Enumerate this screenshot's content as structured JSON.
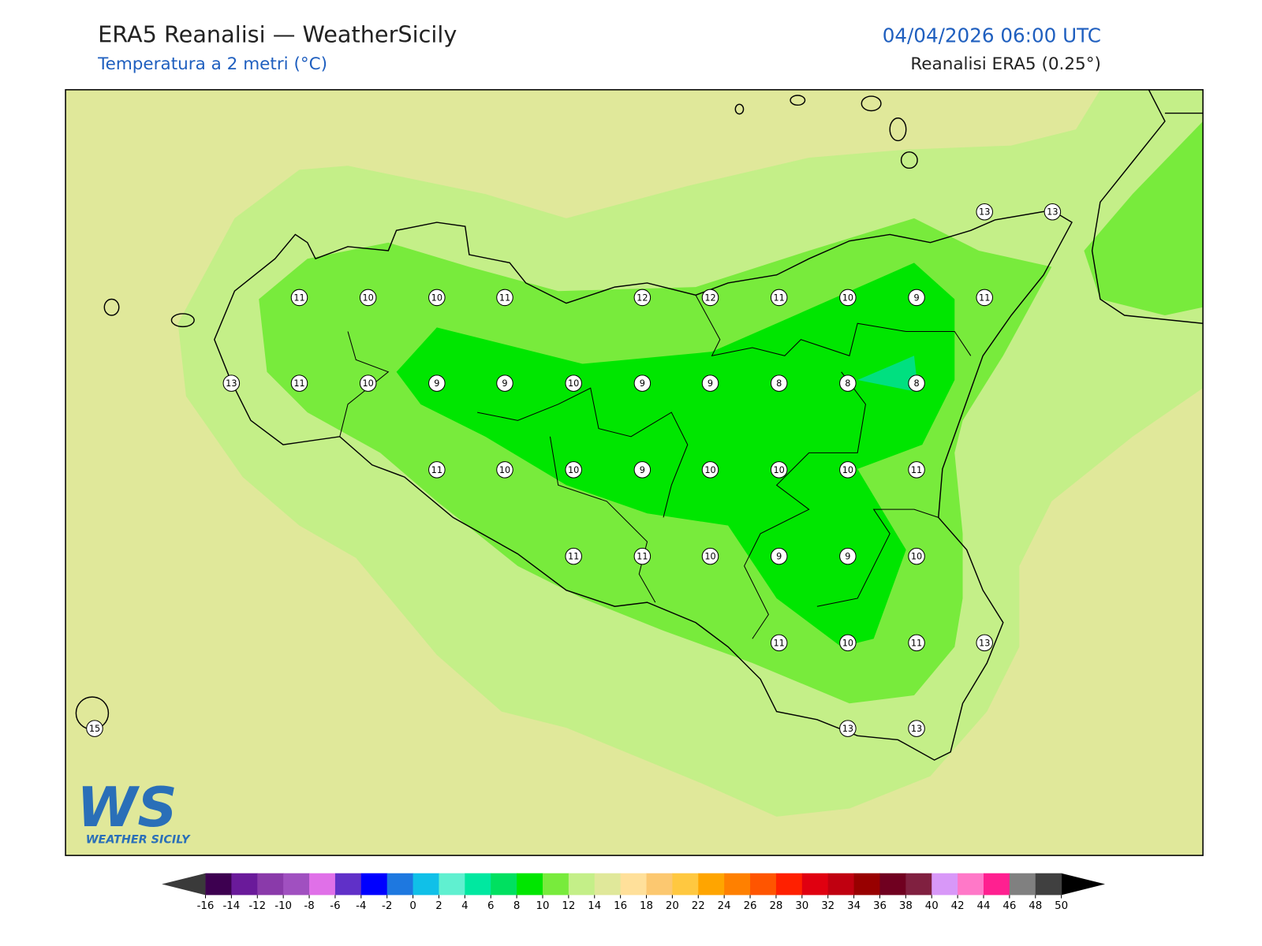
{
  "header": {
    "title": "ERA5 Reanalisi — WeatherSicily",
    "subtitle": "Temperatura a 2 metri (°C)",
    "datetime": "04/04/2026 06:00 UTC",
    "source": "Reanalisi ERA5 (0.25°)"
  },
  "stations": [
    13,
    13,
    11,
    10,
    10,
    11,
    12,
    12,
    11,
    10,
    9,
    11,
    13,
    11,
    10,
    9,
    9,
    10,
    9,
    9,
    8,
    8,
    8,
    11,
    10,
    10,
    9,
    10,
    10,
    10,
    11,
    11,
    11,
    10,
    9,
    9,
    10,
    11,
    10,
    11,
    13,
    15,
    13,
    13
  ],
  "logo": {
    "mark": "WS",
    "name": "WEATHER SICILY"
  },
  "colorbar": {
    "ticks": [
      -16,
      -14,
      -12,
      -10,
      -8,
      -6,
      -4,
      -2,
      0,
      2,
      4,
      6,
      8,
      10,
      12,
      14,
      16,
      18,
      20,
      22,
      24,
      26,
      28,
      30,
      32,
      34,
      36,
      38,
      40,
      42,
      44,
      46,
      48,
      50
    ],
    "colors": [
      "#3d0050",
      "#6a1a9a",
      "#8a3aaa",
      "#a050c0",
      "#e070e8",
      "#6030c8",
      "#0000ff",
      "#1e78e0",
      "#10c0e8",
      "#60f0d0",
      "#00e8a0",
      "#00e060",
      "#00e600",
      "#78eb3c",
      "#c4ef88",
      "#e0e89a",
      "#ffe09a",
      "#fcc870",
      "#ffc840",
      "#ffa500",
      "#ff8000",
      "#ff5500",
      "#ff2000",
      "#e00010",
      "#c00010",
      "#980000",
      "#700020",
      "#802040",
      "#d898f8",
      "#ff78c8",
      "#ff2090",
      "#808080",
      "#404040"
    ],
    "under": "#3a3a3a",
    "over": "#000000"
  }
}
